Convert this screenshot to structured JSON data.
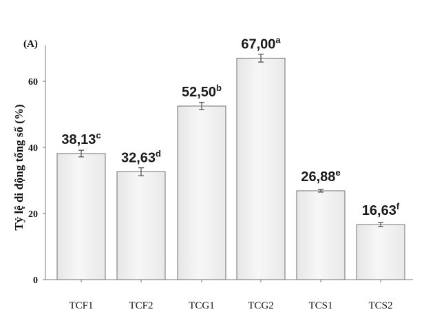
{
  "chart_data": {
    "type": "bar",
    "panel_label": "(A)",
    "title": "",
    "xlabel": "",
    "ylabel": "Tỷ lệ di động tổng số (%)",
    "ylim": [
      0,
      72
    ],
    "yticks": [
      0,
      20,
      40,
      60
    ],
    "grid": false,
    "categories": [
      "TCF1",
      "TCF2",
      "TCG1",
      "TCG2",
      "TCS1",
      "TCS2"
    ],
    "values": [
      38.13,
      32.63,
      52.5,
      67.0,
      26.88,
      16.63
    ],
    "errors": [
      1.0,
      1.2,
      1.1,
      1.2,
      0.4,
      0.6
    ],
    "value_labels": [
      "38,13",
      "32,63",
      "52,50",
      "67,00",
      "26,88",
      "16,63"
    ],
    "significance": [
      "c",
      "d",
      "b",
      "a",
      "e",
      "f"
    ],
    "bar_fill": "#efefef",
    "bar_stroke": "#6f6f6f",
    "error_color": "#555555"
  }
}
